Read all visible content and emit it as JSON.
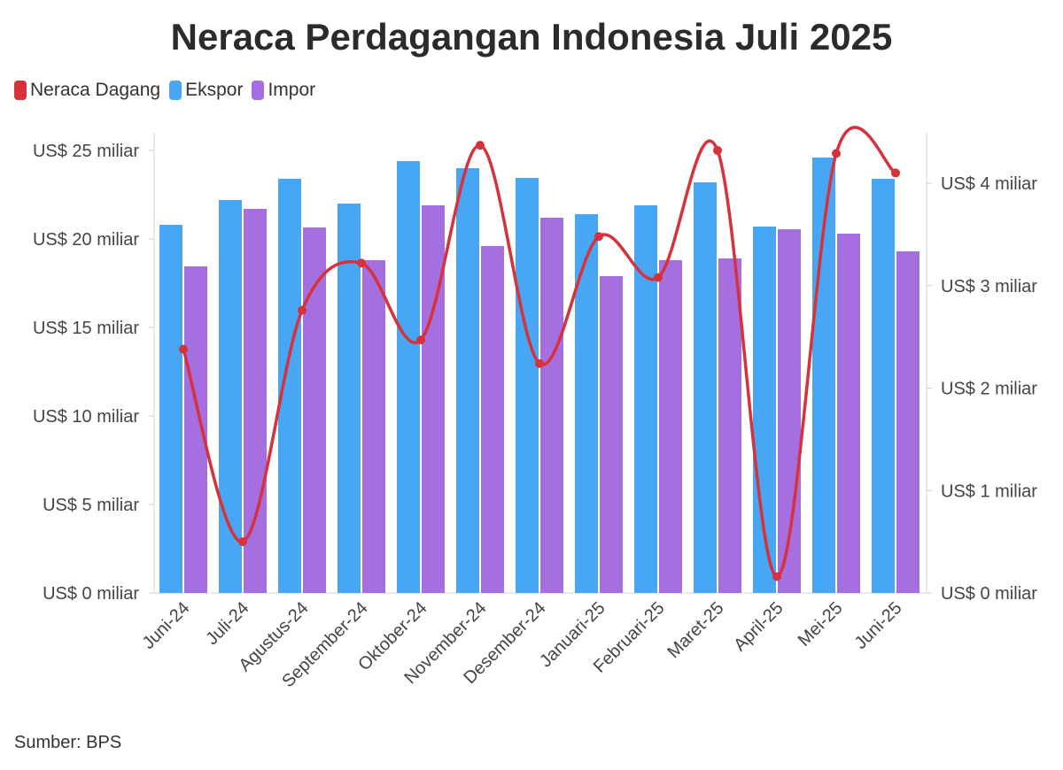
{
  "colors": {
    "neraca": "#d7313b",
    "ekspor": "#47a7f5",
    "impor": "#a56fe0"
  },
  "chart_data": {
    "type": "bar+line",
    "title": "Neraca Perdagangan Indonesia Juli 2025",
    "source": "Sumber: BPS",
    "legend_position": "top-left",
    "categories": [
      "Juni-24",
      "Juli-24",
      "Agustus-24",
      "September-24",
      "Oktober-24",
      "November-24",
      "Desember-24",
      "Januari-25",
      "Februari-25",
      "Maret-25",
      "April-25",
      "Mei-25",
      "Juni-25"
    ],
    "series": [
      {
        "name": "Neraca Dagang",
        "type": "line",
        "axis": "right",
        "values": [
          2.38,
          0.5,
          2.76,
          3.22,
          2.47,
          4.37,
          2.24,
          3.48,
          3.08,
          4.32,
          0.16,
          4.29,
          4.1
        ]
      },
      {
        "name": "Ekspor",
        "type": "bar",
        "axis": "left",
        "values": [
          20.8,
          22.2,
          23.4,
          22.0,
          24.4,
          24.0,
          23.45,
          21.4,
          21.9,
          23.2,
          20.7,
          24.6,
          23.4
        ]
      },
      {
        "name": "Impor",
        "type": "bar",
        "axis": "left",
        "values": [
          18.45,
          21.7,
          20.65,
          18.8,
          21.9,
          19.6,
          21.2,
          17.9,
          18.8,
          18.9,
          20.55,
          20.3,
          19.3
        ]
      }
    ],
    "left_axis": {
      "range": [
        0,
        25
      ],
      "ticks": [
        0,
        5,
        10,
        15,
        20,
        25
      ],
      "tick_labels": [
        "US$ 0 miliar",
        "US$ 5 miliar",
        "US$ 10 miliar",
        "US$ 15 miliar",
        "US$ 20 miliar",
        "US$ 25 miliar"
      ]
    },
    "right_axis": {
      "range": [
        0,
        4.5
      ],
      "ticks": [
        0,
        1,
        2,
        3,
        4
      ],
      "tick_labels": [
        "US$ 0 miliar",
        "US$ 1 miliar",
        "US$ 2 miliar",
        "US$ 3 miliar",
        "US$ 4 miliar"
      ]
    },
    "grid": false
  }
}
